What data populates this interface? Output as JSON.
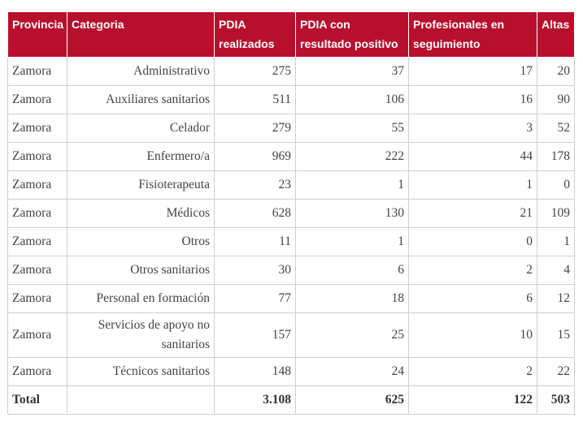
{
  "table": {
    "header": [
      "Provincia",
      "Categoria",
      "PDIA realizados",
      "PDIA con resultado positivo",
      "Profesionales en seguimiento",
      "Altas"
    ],
    "rows": [
      [
        "Zamora",
        "Administrativo",
        "275",
        "37",
        "17",
        "20"
      ],
      [
        "Zamora",
        "Auxiliares sanitarios",
        "511",
        "106",
        "16",
        "90"
      ],
      [
        "Zamora",
        "Celador",
        "279",
        "55",
        "3",
        "52"
      ],
      [
        "Zamora",
        "Enfermero/a",
        "969",
        "222",
        "44",
        "178"
      ],
      [
        "Zamora",
        "Fisioterapeuta",
        "23",
        "1",
        "1",
        "0"
      ],
      [
        "Zamora",
        "Médicos",
        "628",
        "130",
        "21",
        "109"
      ],
      [
        "Zamora",
        "Otros",
        "11",
        "1",
        "0",
        "1"
      ],
      [
        "Zamora",
        "Otros sanitarios",
        "30",
        "6",
        "2",
        "4"
      ],
      [
        "Zamora",
        "Personal en formación",
        "77",
        "18",
        "6",
        "12"
      ],
      [
        "Zamora",
        "Servicios de apoyo no sanitarios",
        "157",
        "25",
        "10",
        "15"
      ],
      [
        "Zamora",
        "Técnicos sanitarios",
        "148",
        "24",
        "2",
        "22"
      ]
    ],
    "total": {
      "label": "Total",
      "values": [
        "3.108",
        "625",
        "122",
        "503"
      ]
    }
  }
}
